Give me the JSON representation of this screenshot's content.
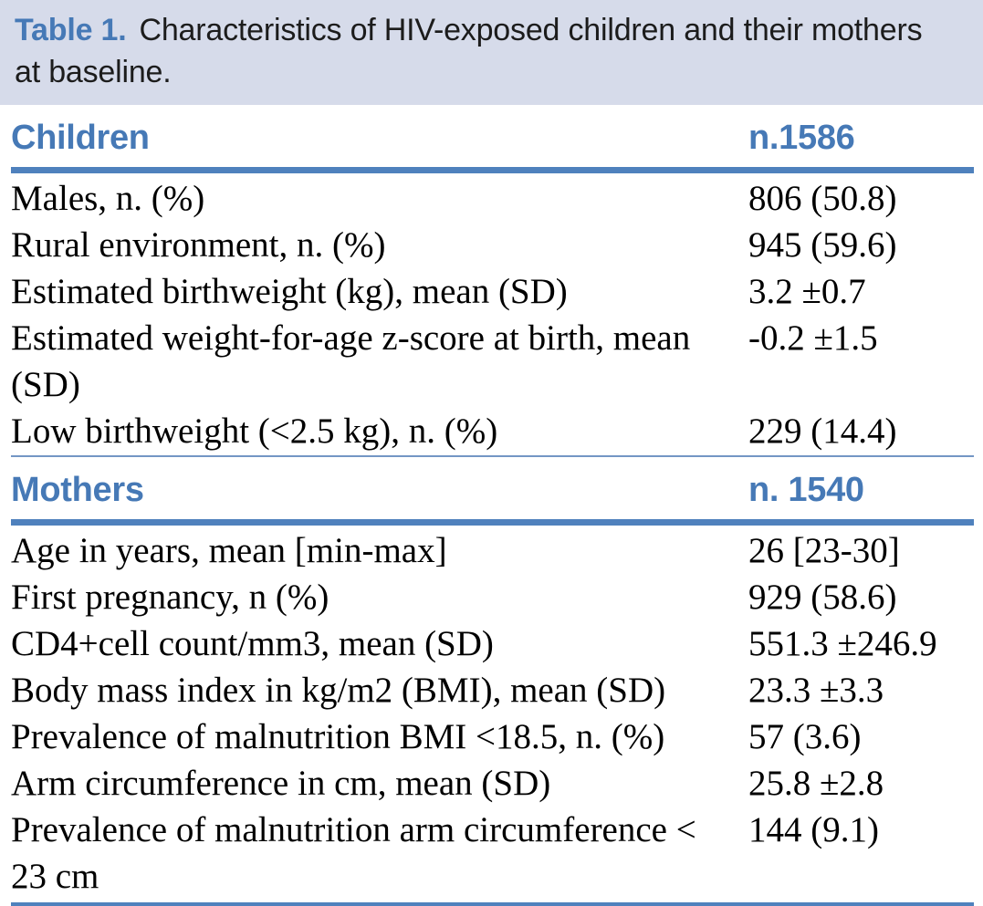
{
  "caption": {
    "label": "Table 1.",
    "text": "Characteristics of HIV-exposed children and their mothers at baseline."
  },
  "colors": {
    "accent_blue": "#4679b6",
    "rule_blue": "#4f81bd",
    "caption_bg": "#d6dbea",
    "caption_text": "#1c1c1c",
    "body_text": "#000000"
  },
  "sections": [
    {
      "title": "Children",
      "count": "n.1586",
      "rows": [
        {
          "label": "Males, n. (%)",
          "value": "806 (50.8)"
        },
        {
          "label": "Rural environment, n. (%)",
          "value": "945 (59.6)"
        },
        {
          "label": "Estimated birthweight (kg), mean (SD)",
          "value": "3.2 ±0.7"
        },
        {
          "label": "Estimated weight-for-age z-score at birth, mean (SD)",
          "value": "-0.2 ±1.5"
        },
        {
          "label": "Low birthweight (<2.5 kg), n. (%)",
          "value": "229 (14.4)"
        }
      ]
    },
    {
      "title": "Mothers",
      "count": "n. 1540",
      "rows": [
        {
          "label": "Age in years, mean [min-max]",
          "value": "26 [23-30]"
        },
        {
          "label": "First pregnancy, n (%)",
          "value": "929 (58.6)"
        },
        {
          "label": "CD4+cell count/mm3, mean (SD)",
          "value": "551.3 ±246.9"
        },
        {
          "label": "Body mass index in kg/m2 (BMI), mean (SD)",
          "value": "23.3 ±3.3"
        },
        {
          "label": "Prevalence of malnutrition BMI <18.5, n. (%)",
          "value": "57 (3.6)"
        },
        {
          "label": "Arm circumference in cm, mean (SD)",
          "value": "25.8 ±2.8"
        },
        {
          "label": "Prevalence of malnutrition arm circumference < 23 cm",
          "value": "144 (9.1)"
        }
      ]
    }
  ]
}
